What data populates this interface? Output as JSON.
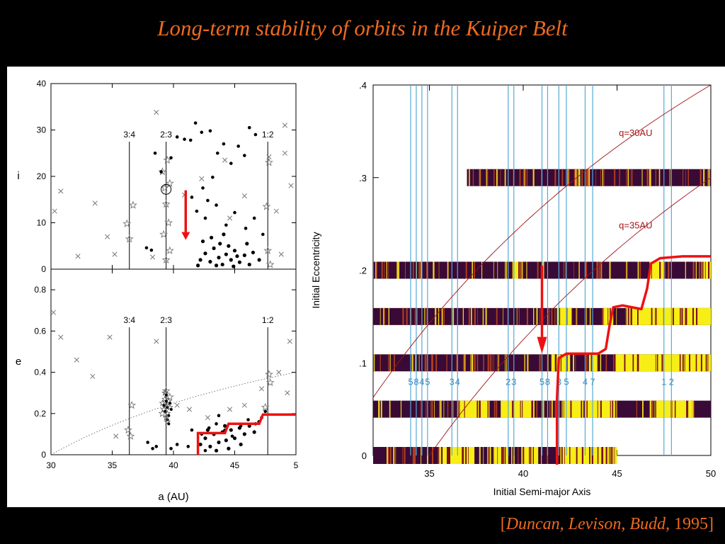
{
  "slide": {
    "title": "Long-term stability of orbits in the Kuiper Belt",
    "citation_authors": "Duncan, Levison, Budd,",
    "citation_year": "1995",
    "citation_open": "[",
    "citation_close": "]"
  },
  "colors": {
    "title": "#ee6a1e",
    "arrow": "#ee1111",
    "stable": "#f7ee16",
    "unstable": "#3a0a36",
    "resonance": "#58a9d6"
  },
  "chart_data": [
    {
      "type": "scatter",
      "title": "",
      "xlabel": "",
      "ylabel": "i",
      "xlim": [
        30,
        50
      ],
      "ylim": [
        0,
        40
      ],
      "xticks": [
        "30",
        "35",
        "40",
        "45",
        "5"
      ],
      "yticks": [
        "0",
        "10",
        "20",
        "30",
        "40"
      ],
      "resonances": [
        {
          "label": "3:4",
          "a": 36.4
        },
        {
          "label": "2:3",
          "a": 39.4
        },
        {
          "label": "1:2",
          "a": 47.7
        }
      ],
      "series": [
        {
          "marker": "cross",
          "points": [
            [
              30.3,
              12.5
            ],
            [
              30.8,
              16.8
            ],
            [
              32.2,
              2.8
            ],
            [
              33.6,
              14.2
            ],
            [
              34.6,
              7
            ],
            [
              35.2,
              3.2
            ],
            [
              38.6,
              33.8
            ],
            [
              40.9,
              16
            ],
            [
              42.3,
              19.5
            ],
            [
              44.2,
              23.5
            ],
            [
              45.8,
              15.8
            ],
            [
              47.8,
              24.2
            ],
            [
              48.4,
              12.5
            ],
            [
              49.1,
              31
            ],
            [
              49.6,
              18
            ],
            [
              38.3,
              2.6
            ],
            [
              44.6,
              11
            ],
            [
              48.8,
              3.2
            ],
            [
              49.1,
              25
            ]
          ]
        },
        {
          "marker": "star",
          "points": [
            [
              36.2,
              9.8
            ],
            [
              36.4,
              6.5
            ],
            [
              36.7,
              13.8
            ],
            [
              39.1,
              21
            ],
            [
              39.3,
              17.5
            ],
            [
              39.5,
              23.5
            ],
            [
              39.7,
              18.5
            ],
            [
              39.4,
              14
            ],
            [
              39.6,
              10
            ],
            [
              39.2,
              7.5
            ],
            [
              39.7,
              4
            ],
            [
              39.4,
              2
            ],
            [
              47.8,
              23
            ],
            [
              47.6,
              13.5
            ],
            [
              47.7,
              4
            ],
            [
              47.9,
              1
            ]
          ]
        },
        {
          "marker": "dot",
          "points": [
            [
              37.8,
              4.6
            ],
            [
              38.2,
              4.1
            ],
            [
              38.5,
              25
            ],
            [
              39.0,
              21
            ],
            [
              39.8,
              24
            ],
            [
              40.3,
              28.5
            ],
            [
              40.9,
              28
            ],
            [
              41.4,
              27.8
            ],
            [
              41.8,
              31.5
            ],
            [
              42.3,
              29.5
            ],
            [
              43.0,
              29.8
            ],
            [
              43.6,
              25
            ],
            [
              44.1,
              27
            ],
            [
              44.7,
              22.8
            ],
            [
              45.3,
              26.5
            ],
            [
              45.8,
              24.5
            ],
            [
              46.2,
              30.5
            ],
            [
              46.7,
              29
            ],
            [
              42.4,
              17.5
            ],
            [
              43.2,
              19.8
            ],
            [
              42.8,
              14.8
            ],
            [
              41.9,
              12.5
            ],
            [
              42.6,
              11
            ],
            [
              43.5,
              13.8
            ],
            [
              44.3,
              9.5
            ],
            [
              45.0,
              12.2
            ],
            [
              45.9,
              8.8
            ],
            [
              46.6,
              11
            ],
            [
              41.5,
              15.5
            ],
            [
              47.3,
              7.5
            ]
          ]
        },
        {
          "marker": "dense",
          "points": [
            [
              42.2,
              2
            ],
            [
              42.6,
              3.4
            ],
            [
              43.0,
              1.6
            ],
            [
              43.3,
              4.5
            ],
            [
              43.7,
              2.5
            ],
            [
              44.0,
              1
            ],
            [
              44.3,
              3.2
            ],
            [
              44.7,
              2
            ],
            [
              45.0,
              4
            ],
            [
              45.4,
              1.5
            ],
            [
              45.8,
              3
            ],
            [
              46.2,
              1
            ],
            [
              42.4,
              6
            ],
            [
              43.1,
              6.8
            ],
            [
              43.8,
              5.5
            ],
            [
              44.5,
              5
            ],
            [
              45.2,
              2.8
            ],
            [
              46.5,
              3.6
            ],
            [
              47.0,
              2
            ],
            [
              42.0,
              0.8
            ],
            [
              44.9,
              0.6
            ],
            [
              43.5,
              0.8
            ],
            [
              46.0,
              5.5
            ],
            [
              44.1,
              7.5
            ]
          ]
        }
      ]
    },
    {
      "type": "scatter",
      "title": "",
      "xlabel": "a (AU)",
      "ylabel": "e",
      "xlim": [
        30,
        50
      ],
      "ylim": [
        0,
        0.9
      ],
      "xticks": [
        "30",
        "35",
        "40",
        "45",
        "5"
      ],
      "yticks": [
        "0",
        "0.2",
        "0.4",
        "0.6",
        "0.8"
      ],
      "resonances": [
        {
          "label": "3:4",
          "a": 36.4
        },
        {
          "label": "2:3",
          "a": 39.4
        },
        {
          "label": "1:2",
          "a": 47.7
        }
      ],
      "series": [
        {
          "marker": "cross",
          "points": [
            [
              30.2,
              0.69
            ],
            [
              30.8,
              0.57
            ],
            [
              32.1,
              0.46
            ],
            [
              33.4,
              0.38
            ],
            [
              34.8,
              0.57
            ],
            [
              35.3,
              0.09
            ],
            [
              38.6,
              0.55
            ],
            [
              40.3,
              0.24
            ],
            [
              41.3,
              0.22
            ],
            [
              42.8,
              0.18
            ],
            [
              44.6,
              0.22
            ],
            [
              45.8,
              0.24
            ],
            [
              47.2,
              0.32
            ],
            [
              48.6,
              0.4
            ],
            [
              49.5,
              0.55
            ],
            [
              49.3,
              0.3
            ]
          ]
        },
        {
          "marker": "star",
          "points": [
            [
              36.3,
              0.12
            ],
            [
              36.5,
              0.09
            ],
            [
              36.6,
              0.24
            ],
            [
              39.4,
              0.31
            ],
            [
              39.1,
              0.2
            ],
            [
              39.7,
              0.28
            ],
            [
              47.8,
              0.39
            ],
            [
              47.9,
              0.35
            ],
            [
              47.5,
              0.23
            ]
          ]
        },
        {
          "marker": "dot",
          "points": [
            [
              37.9,
              0.06
            ],
            [
              38.3,
              0.03
            ],
            [
              38.6,
              0.04
            ],
            [
              39.8,
              0.03
            ],
            [
              40.3,
              0.05
            ],
            [
              41.2,
              0.04
            ],
            [
              41.5,
              0.12
            ],
            [
              42.3,
              0.1
            ],
            [
              42.9,
              0.13
            ],
            [
              43.5,
              0.15
            ],
            [
              44.2,
              0.12
            ],
            [
              44.8,
              0.09
            ],
            [
              45.5,
              0.14
            ],
            [
              46.1,
              0.17
            ],
            [
              46.7,
              0.15
            ],
            [
              47.2,
              0.18
            ],
            [
              47.5,
              0.21
            ],
            [
              43.7,
              0.19
            ],
            [
              42.6,
              0.02
            ]
          ]
        },
        {
          "marker": "dense",
          "points": [
            [
              42.2,
              0.05
            ],
            [
              42.6,
              0.08
            ],
            [
              43.0,
              0.04
            ],
            [
              43.3,
              0.1
            ],
            [
              43.7,
              0.06
            ],
            [
              44.0,
              0.11
            ],
            [
              44.3,
              0.07
            ],
            [
              44.7,
              0.12
            ],
            [
              45.0,
              0.08
            ],
            [
              45.4,
              0.13
            ],
            [
              45.8,
              0.1
            ],
            [
              46.2,
              0.14
            ],
            [
              46.6,
              0.11
            ],
            [
              47.0,
              0.16
            ],
            [
              43.5,
              0.02
            ],
            [
              44.5,
              0.03
            ],
            [
              45.5,
              0.05
            ],
            [
              42.8,
              0.12
            ],
            [
              44.2,
              0.14
            ]
          ]
        },
        {
          "marker": "cluster",
          "points": [
            [
              39.4,
              0.24
            ],
            [
              39.2,
              0.22
            ],
            [
              39.6,
              0.26
            ],
            [
              39.3,
              0.27
            ],
            [
              39.5,
              0.2
            ],
            [
              39.1,
              0.25
            ],
            [
              39.7,
              0.23
            ],
            [
              39.4,
              0.18
            ],
            [
              39.3,
              0.3
            ],
            [
              39.5,
              0.16
            ]
          ]
        }
      ]
    },
    {
      "type": "heatmap",
      "title": "",
      "xlabel": "Initial Semi-major Axis",
      "ylabel": "Initial Eccentricity",
      "xlim": [
        32,
        50
      ],
      "ylim": [
        0,
        0.4
      ],
      "xticks": [
        "35",
        "40",
        "45",
        "50"
      ],
      "yticks": [
        "0",
        ".1",
        ".2",
        ".3",
        ".4"
      ],
      "resonances": [
        {
          "label": "5",
          "a": 34.0
        },
        {
          "label": "8",
          "a": 34.3
        },
        {
          "label": "4",
          "a": 34.6
        },
        {
          "label": "5",
          "a": 34.9
        },
        {
          "label": "3",
          "a": 36.2
        },
        {
          "label": "4",
          "a": 36.5
        },
        {
          "label": "2",
          "a": 39.2
        },
        {
          "label": "3",
          "a": 39.5
        },
        {
          "label": "5",
          "a": 41.0
        },
        {
          "label": "8",
          "a": 41.3
        },
        {
          "label": "3",
          "a": 41.9
        },
        {
          "label": "5",
          "a": 42.3
        },
        {
          "label": "4",
          "a": 43.3
        },
        {
          "label": "7",
          "a": 43.7
        },
        {
          "label": "1",
          "a": 47.5
        },
        {
          "label": "2",
          "a": 47.9
        }
      ],
      "perihelion_lines": [
        {
          "label": "q=30AU",
          "q": 30
        },
        {
          "label": "q=35AU",
          "q": 35
        }
      ],
      "rows": [
        {
          "e": 0.3,
          "a_range": [
            37,
            50
          ],
          "stable_intervals": [],
          "boundary_a": null
        },
        {
          "e": 0.2,
          "a_range": [
            32,
            50
          ],
          "stable_intervals": [
            [
              39.5,
              40
            ],
            [
              46.8,
              47.5
            ],
            [
              49.5,
              50
            ]
          ],
          "boundary_a": 47.2
        },
        {
          "e": 0.15,
          "a_range": [
            32,
            50
          ],
          "stable_intervals": [
            [
              41.8,
              42.6
            ],
            [
              44.3,
              44.8
            ],
            [
              45.5,
              50
            ]
          ],
          "boundary_a": 45.3
        },
        {
          "e": 0.1,
          "a_range": [
            32,
            50
          ],
          "stable_intervals": [
            [
              41.5,
              42.5
            ],
            [
              43.5,
              44
            ],
            [
              44.8,
              50
            ]
          ],
          "boundary_a": 44.7
        },
        {
          "e": 0.05,
          "a_range": [
            32,
            50
          ],
          "stable_intervals": [
            [
              36.5,
              38.2
            ],
            [
              38.8,
              40.6
            ],
            [
              42.1,
              45
            ],
            [
              47,
              49
            ]
          ],
          "boundary_a": 41.7
        },
        {
          "e": 0.0,
          "a_range": [
            32,
            45
          ],
          "stable_intervals": [
            [
              35.7,
              37.4
            ],
            [
              38.4,
              39.2
            ],
            [
              39.9,
              40.8
            ],
            [
              42,
              45
            ]
          ],
          "boundary_a": 41.7
        }
      ]
    }
  ]
}
